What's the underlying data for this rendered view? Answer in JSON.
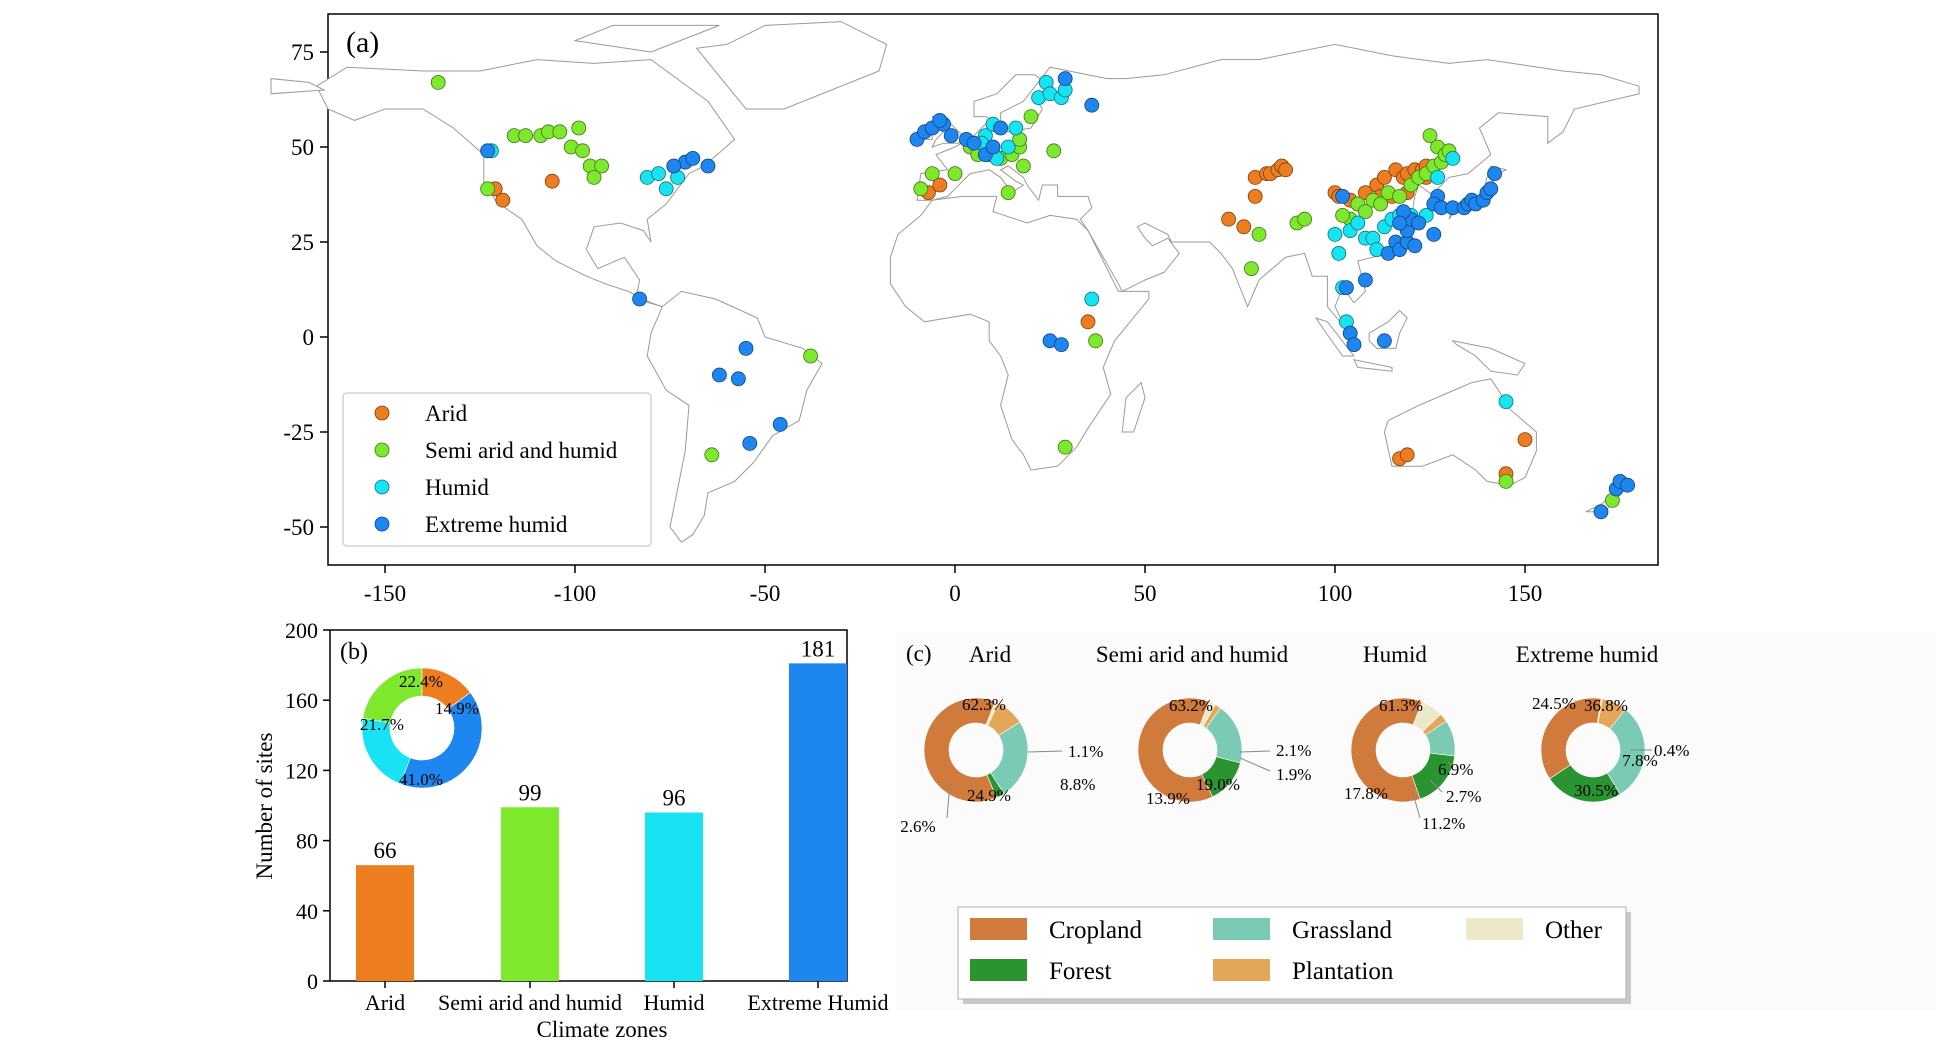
{
  "colors": {
    "arid": "#ee7d20",
    "semi": "#7ee82c",
    "humid": "#17e3f2",
    "extreme": "#1e86f0",
    "cropland": "#d07a3c",
    "forest": "#2a9430",
    "grassland": "#7bcab4",
    "plantation": "#e4a75a",
    "other": "#ece9c9"
  },
  "chart_data": [
    {
      "type": "scatter",
      "panel_label": "(a)",
      "xlim": [
        -165,
        185
      ],
      "ylim": [
        -60,
        85
      ],
      "x_ticks": [
        -150,
        -100,
        -50,
        0,
        50,
        100,
        150
      ],
      "y_ticks": [
        75,
        50,
        25,
        0,
        -25,
        -50
      ],
      "legend_position": "lower-left",
      "series": [
        {
          "name": "Arid",
          "color_key": "arid",
          "points": [
            [
              -121,
              39
            ],
            [
              -119,
              36
            ],
            [
              -106,
              41
            ],
            [
              -7,
              38
            ],
            [
              -4,
              40
            ],
            [
              72,
              31
            ],
            [
              76,
              29
            ],
            [
              79,
              37
            ],
            [
              79,
              42
            ],
            [
              82,
              43
            ],
            [
              83,
              43
            ],
            [
              85,
              44
            ],
            [
              86,
              45
            ],
            [
              87,
              44
            ],
            [
              100,
              38
            ],
            [
              101,
              37
            ],
            [
              104,
              36
            ],
            [
              106,
              35
            ],
            [
              108,
              38
            ],
            [
              111,
              40
            ],
            [
              113,
              42
            ],
            [
              116,
              44
            ],
            [
              118,
              42
            ],
            [
              119,
              43
            ],
            [
              119,
              38
            ],
            [
              121,
              44
            ],
            [
              123,
              44
            ],
            [
              124,
              45
            ],
            [
              124,
              42
            ],
            [
              112,
              37
            ],
            [
              115,
              37
            ],
            [
              35,
              4
            ],
            [
              117,
              -32
            ],
            [
              119,
              -31
            ],
            [
              150,
              -27
            ],
            [
              145,
              -36
            ]
          ]
        },
        {
          "name": "Semi arid and humid",
          "color_key": "semi",
          "points": [
            [
              -136,
              67
            ],
            [
              -123,
              39
            ],
            [
              -116,
              53
            ],
            [
              -113,
              53
            ],
            [
              -109,
              53
            ],
            [
              -107,
              54
            ],
            [
              -104,
              54
            ],
            [
              -99,
              55
            ],
            [
              -101,
              50
            ],
            [
              -98,
              49
            ],
            [
              -96,
              45
            ],
            [
              -93,
              45
            ],
            [
              -95,
              42
            ],
            [
              -9,
              39
            ],
            [
              -6,
              43
            ],
            [
              0,
              43
            ],
            [
              4,
              50
            ],
            [
              6,
              48
            ],
            [
              12,
              47
            ],
            [
              15,
              48
            ],
            [
              17,
              50
            ],
            [
              18,
              45
            ],
            [
              17,
              52
            ],
            [
              14,
              38
            ],
            [
              20,
              58
            ],
            [
              26,
              49
            ],
            [
              37,
              -1
            ],
            [
              29,
              -29
            ],
            [
              -38,
              -5
            ],
            [
              -64,
              -31
            ],
            [
              78,
              18
            ],
            [
              80,
              27
            ],
            [
              90,
              30
            ],
            [
              92,
              31
            ],
            [
              104,
              31
            ],
            [
              102,
              32
            ],
            [
              106,
              35
            ],
            [
              108,
              33
            ],
            [
              110,
              36
            ],
            [
              112,
              35
            ],
            [
              114,
              38
            ],
            [
              117,
              37
            ],
            [
              120,
              40
            ],
            [
              122,
              42
            ],
            [
              124,
              43
            ],
            [
              126,
              45
            ],
            [
              128,
              46
            ],
            [
              125,
              53
            ],
            [
              127,
              50
            ],
            [
              129,
              48
            ],
            [
              130,
              49
            ],
            [
              145,
              -38
            ],
            [
              173,
              -43
            ]
          ]
        },
        {
          "name": "Humid",
          "color_key": "humid",
          "points": [
            [
              -81,
              42
            ],
            [
              -78,
              43
            ],
            [
              -76,
              39
            ],
            [
              -73,
              42
            ],
            [
              8,
              53
            ],
            [
              10,
              56
            ],
            [
              7,
              51
            ],
            [
              9,
              48
            ],
            [
              11,
              47
            ],
            [
              14,
              50
            ],
            [
              16,
              55
            ],
            [
              22,
              63
            ],
            [
              24,
              67
            ],
            [
              25,
              64
            ],
            [
              28,
              63
            ],
            [
              29,
              65
            ],
            [
              36,
              10
            ],
            [
              -122,
              49
            ],
            [
              100,
              27
            ],
            [
              101,
              22
            ],
            [
              104,
              28
            ],
            [
              106,
              30
            ],
            [
              108,
              26
            ],
            [
              110,
              26
            ],
            [
              111,
              23
            ],
            [
              113,
              29
            ],
            [
              115,
              31
            ],
            [
              117,
              32
            ],
            [
              120,
              32
            ],
            [
              124,
              32
            ],
            [
              127,
              42
            ],
            [
              131,
              47
            ],
            [
              102,
              13
            ],
            [
              103,
              4
            ],
            [
              145,
              -17
            ]
          ]
        },
        {
          "name": "Extreme humid",
          "color_key": "extreme",
          "points": [
            [
              -123,
              49
            ],
            [
              -71,
              46
            ],
            [
              -74,
              45
            ],
            [
              -69,
              47
            ],
            [
              -65,
              45
            ],
            [
              -83,
              10
            ],
            [
              -55,
              -3
            ],
            [
              -57,
              -11
            ],
            [
              -62,
              -10
            ],
            [
              -54,
              -28
            ],
            [
              -46,
              -23
            ],
            [
              -10,
              52
            ],
            [
              -8,
              54
            ],
            [
              -6,
              55
            ],
            [
              -3,
              56
            ],
            [
              -1,
              53
            ],
            [
              -4,
              57
            ],
            [
              3,
              52
            ],
            [
              5,
              51
            ],
            [
              8,
              48
            ],
            [
              10,
              50
            ],
            [
              12,
              55
            ],
            [
              29,
              68
            ],
            [
              36,
              61
            ],
            [
              25,
              -1
            ],
            [
              28,
              -2
            ],
            [
              102,
              37
            ],
            [
              103,
              13
            ],
            [
              104,
              1
            ],
            [
              105,
              -2
            ],
            [
              113,
              -1
            ],
            [
              108,
              15
            ],
            [
              114,
              22
            ],
            [
              116,
              25
            ],
            [
              117,
              23
            ],
            [
              119,
              25
            ],
            [
              121,
              24
            ],
            [
              119,
              28
            ],
            [
              120,
              31
            ],
            [
              122,
              30
            ],
            [
              118,
              33
            ],
            [
              117,
              30
            ],
            [
              127,
              37
            ],
            [
              126,
              35
            ],
            [
              128,
              34
            ],
            [
              131,
              34
            ],
            [
              134,
              34
            ],
            [
              135,
              35
            ],
            [
              136,
              36
            ],
            [
              137,
              35
            ],
            [
              139,
              36
            ],
            [
              140,
              38
            ],
            [
              141,
              39
            ],
            [
              142,
              43
            ],
            [
              170,
              -46
            ],
            [
              174,
              -40
            ],
            [
              175,
              -38
            ],
            [
              177,
              -39
            ],
            [
              126,
              27
            ]
          ]
        }
      ]
    },
    {
      "type": "bar",
      "panel_label": "(b)",
      "categories": [
        "Arid",
        "Semi arid and humid",
        "Humid",
        "Extreme Humid"
      ],
      "values": [
        66,
        99,
        96,
        181
      ],
      "color_keys": [
        "arid",
        "semi",
        "humid",
        "extreme"
      ],
      "xlabel": "Climate zones",
      "ylabel": "Number of sites",
      "ylim": [
        0,
        200
      ],
      "y_ticks": [
        0,
        40,
        80,
        120,
        160,
        200
      ]
    },
    {
      "type": "pie",
      "inset_of": "(b)",
      "slices": [
        {
          "label": "14.9%",
          "value": 14.9,
          "color_key": "arid"
        },
        {
          "label": "41.0%",
          "value": 41.0,
          "color_key": "extreme"
        },
        {
          "label": "21.7%",
          "value": 21.7,
          "color_key": "humid"
        },
        {
          "label": "22.4%",
          "value": 22.4,
          "color_key": "semi"
        }
      ]
    },
    {
      "type": "pie",
      "panel_label": "(c)",
      "title": "Arid",
      "slices": [
        {
          "label": "62.3%",
          "value": 62.3,
          "color_key": "cropland"
        },
        {
          "label": "1.1%",
          "value": 1.1,
          "color_key": "other"
        },
        {
          "label": "8.8%",
          "value": 8.8,
          "color_key": "plantation"
        },
        {
          "label": "24.9%",
          "value": 24.9,
          "color_key": "grassland"
        },
        {
          "label": "2.6%",
          "value": 2.6,
          "color_key": "forest"
        }
      ]
    },
    {
      "type": "pie",
      "title": "Semi arid and humid",
      "slices": [
        {
          "label": "63.2%",
          "value": 63.2,
          "color_key": "cropland"
        },
        {
          "label": "2.1%",
          "value": 2.1,
          "color_key": "other"
        },
        {
          "label": "1.9%",
          "value": 1.9,
          "color_key": "plantation"
        },
        {
          "label": "19.0%",
          "value": 19.0,
          "color_key": "grassland"
        },
        {
          "label": "13.9%",
          "value": 13.9,
          "color_key": "forest"
        }
      ]
    },
    {
      "type": "pie",
      "title": "Humid",
      "slices": [
        {
          "label": "61.3%",
          "value": 61.3,
          "color_key": "cropland"
        },
        {
          "label": "6.9%",
          "value": 6.9,
          "color_key": "other"
        },
        {
          "label": "2.7%",
          "value": 2.7,
          "color_key": "plantation"
        },
        {
          "label": "11.2%",
          "value": 11.2,
          "color_key": "grassland"
        },
        {
          "label": "17.8%",
          "value": 17.8,
          "color_key": "forest"
        }
      ]
    },
    {
      "type": "pie",
      "title": "Extreme humid",
      "slices": [
        {
          "label": "36.8%",
          "value": 36.8,
          "color_key": "cropland"
        },
        {
          "label": "0.4%",
          "value": 0.4,
          "color_key": "other"
        },
        {
          "label": "7.8%",
          "value": 7.8,
          "color_key": "plantation"
        },
        {
          "label": "30.5%",
          "value": 30.5,
          "color_key": "grassland"
        },
        {
          "label": "24.5%",
          "value": 24.5,
          "color_key": "forest"
        }
      ]
    }
  ],
  "landuse_legend": [
    {
      "label": "Cropland",
      "color_key": "cropland"
    },
    {
      "label": "Grassland",
      "color_key": "grassland"
    },
    {
      "label": "Other",
      "color_key": "other"
    },
    {
      "label": "Forest",
      "color_key": "forest"
    },
    {
      "label": "Plantation",
      "color_key": "plantation"
    }
  ]
}
